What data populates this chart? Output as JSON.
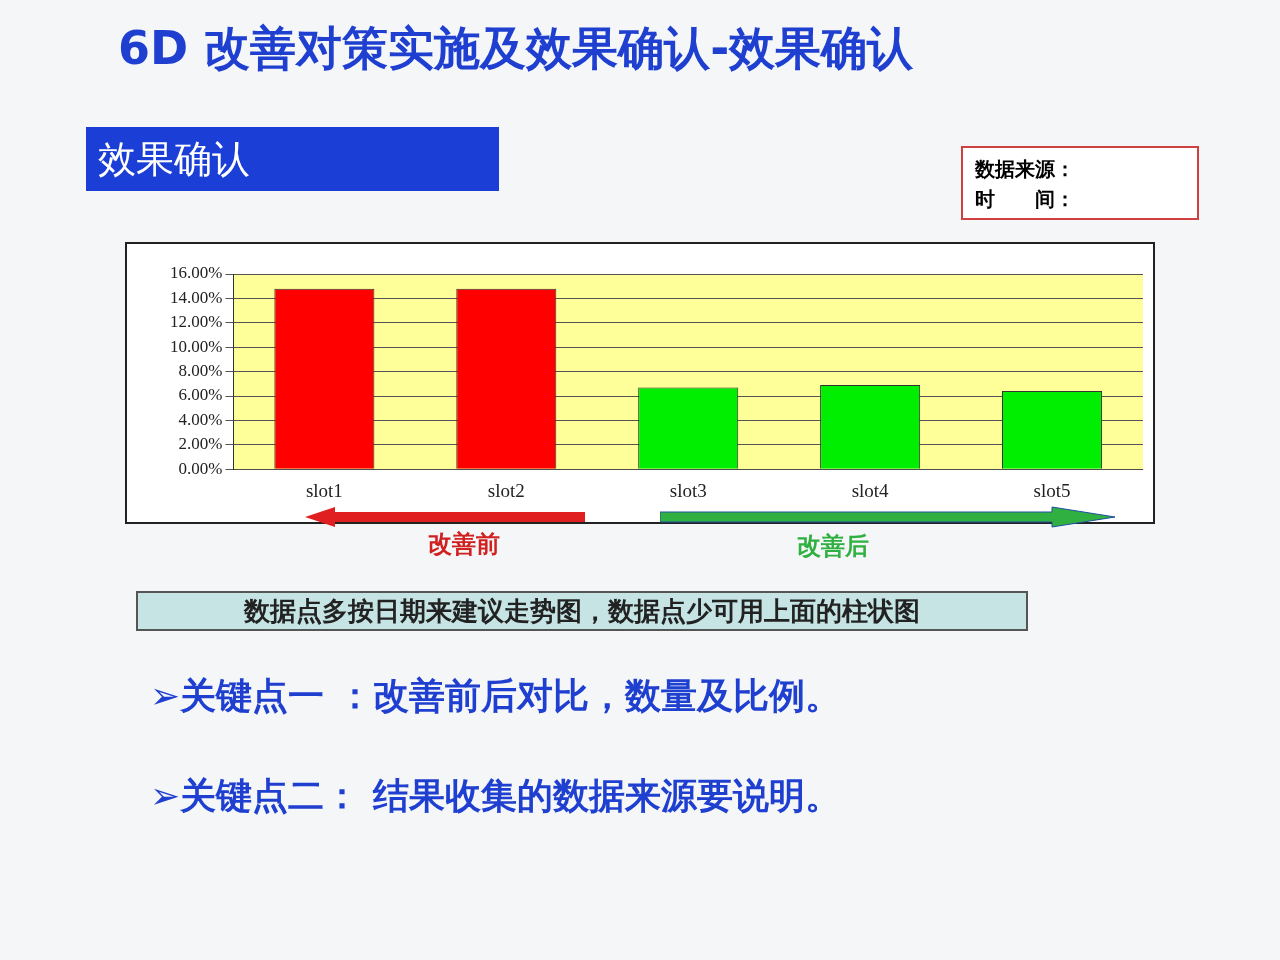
{
  "chart_data": {
    "type": "bar",
    "title": "6D 改善对策实施及效果确认-效果确认",
    "subtitle": "效果确认",
    "categories": [
      "slot1",
      "slot2",
      "slot3",
      "slot4",
      "slot5"
    ],
    "values": [
      14.8,
      14.8,
      6.7,
      6.9,
      6.4
    ],
    "colors": [
      "#ff0000",
      "#ff0000",
      "#00ee00",
      "#00ee00",
      "#00ee00"
    ],
    "ylim": [
      0,
      16
    ],
    "yticks": [
      {
        "value": 0,
        "label": "0.00%"
      },
      {
        "value": 2,
        "label": "2.00%"
      },
      {
        "value": 4,
        "label": "4.00%"
      },
      {
        "value": 6,
        "label": "6.00%"
      },
      {
        "value": 8,
        "label": "8.00%"
      },
      {
        "value": 10,
        "label": "10.00%"
      },
      {
        "value": 12,
        "label": "12.00%"
      },
      {
        "value": 14,
        "label": "14.00%"
      },
      {
        "value": 16,
        "label": "16.00%"
      }
    ],
    "grid": "y",
    "legend": false,
    "annotations": [
      "数据来源：",
      "时　　间：",
      "改善前",
      "改善后",
      "数据点多按日期来建议走势图，数据点少可用上面的柱状图",
      "➢关键点一 ：改善前后对比，数量及比例。",
      "➢关键点二：  结果收集的数据来源要说明。"
    ]
  }
}
